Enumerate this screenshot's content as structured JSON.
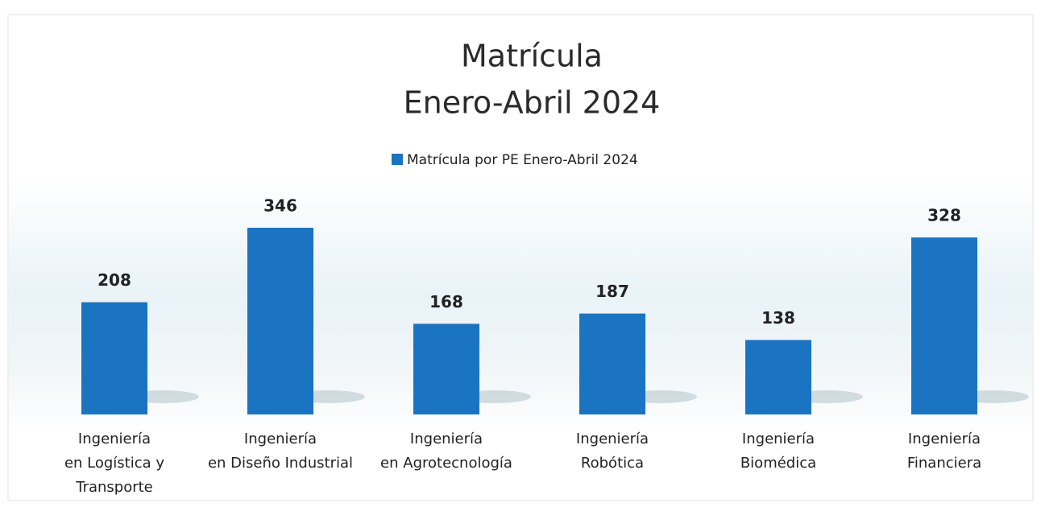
{
  "chart_data": {
    "type": "bar",
    "title": [
      "Matrícula",
      "Enero-Abril 2024"
    ],
    "categories": [
      [
        "Ingeniería",
        "en Logística y",
        "Transporte"
      ],
      [
        "Ingeniería",
        "en Diseño Industrial"
      ],
      [
        "Ingeniería",
        "en Agrotecnología"
      ],
      [
        "Ingeniería",
        "Robótica"
      ],
      [
        "Ingeniería",
        "Biomédica"
      ],
      [
        "Ingeniería",
        "Financiera"
      ]
    ],
    "series": [
      {
        "name": "Matrícula por PE Enero-Abril 2024",
        "color": "#1b74c2",
        "values": [
          208,
          346,
          168,
          187,
          138,
          328
        ]
      }
    ],
    "legend": "top"
  }
}
